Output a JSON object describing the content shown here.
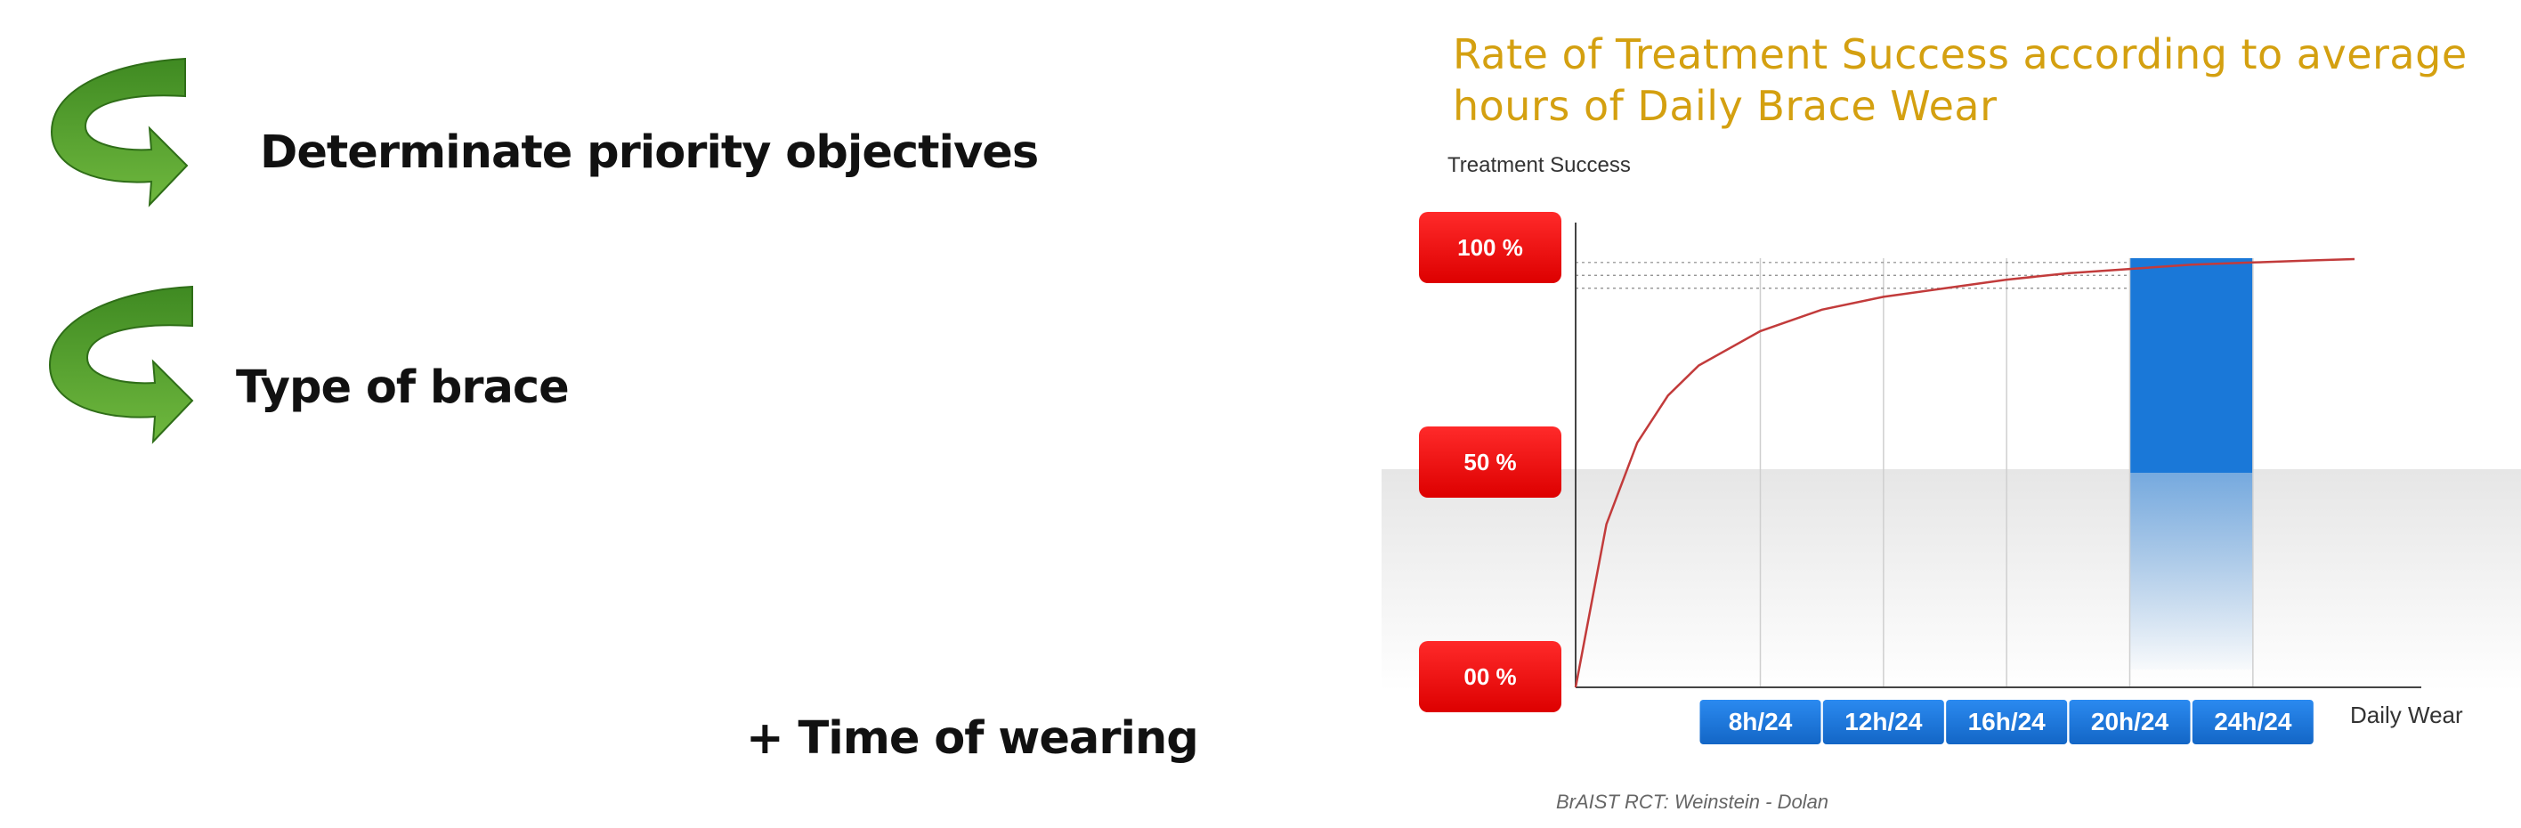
{
  "slide": {
    "bullets": [
      {
        "text": "Determinate priority objectives",
        "icon": "curved-arrow-icon"
      },
      {
        "text": "Type of brace",
        "icon": "curved-arrow-icon"
      },
      {
        "text": "+ Time of wearing"
      }
    ],
    "colors": {
      "arrow": "#4e9a2e",
      "bullet_text": "#111111"
    }
  },
  "chart": {
    "source": "BrAIST RCT: Weinstein - Dolan",
    "colors": {
      "title": "#d4a010",
      "y_badge": "#ee1111",
      "x_badge": "#1a78d8",
      "highlight": "#1a78d8",
      "curve": "#c23b3b"
    }
  },
  "chart_data": {
    "type": "line",
    "title": "Rate of Treatment Success according to average hours of Daily Brace Wear",
    "ylabel": "Treatment Success",
    "xlabel": "Daily Wear",
    "categories": [
      "8h/24",
      "12h/24",
      "16h/24",
      "20h/24",
      "24h/24"
    ],
    "y_ticks": [
      "100 %",
      "50 %",
      "00 %"
    ],
    "ylim": [
      0,
      100
    ],
    "xlim": [
      0,
      24
    ],
    "highlight_band": {
      "from": "20h/24",
      "to": "24h/24",
      "from_value": 18,
      "to_value": 22
    },
    "series": [
      {
        "x": [
          0,
          1,
          2,
          3,
          4,
          6,
          8,
          10,
          12,
          14,
          16,
          18,
          20,
          22,
          24
        ],
        "y": [
          0,
          38,
          57,
          68,
          75,
          83,
          88,
          91,
          93,
          95,
          96.5,
          97.5,
          98.5,
          99,
          99.5
        ]
      }
    ]
  }
}
